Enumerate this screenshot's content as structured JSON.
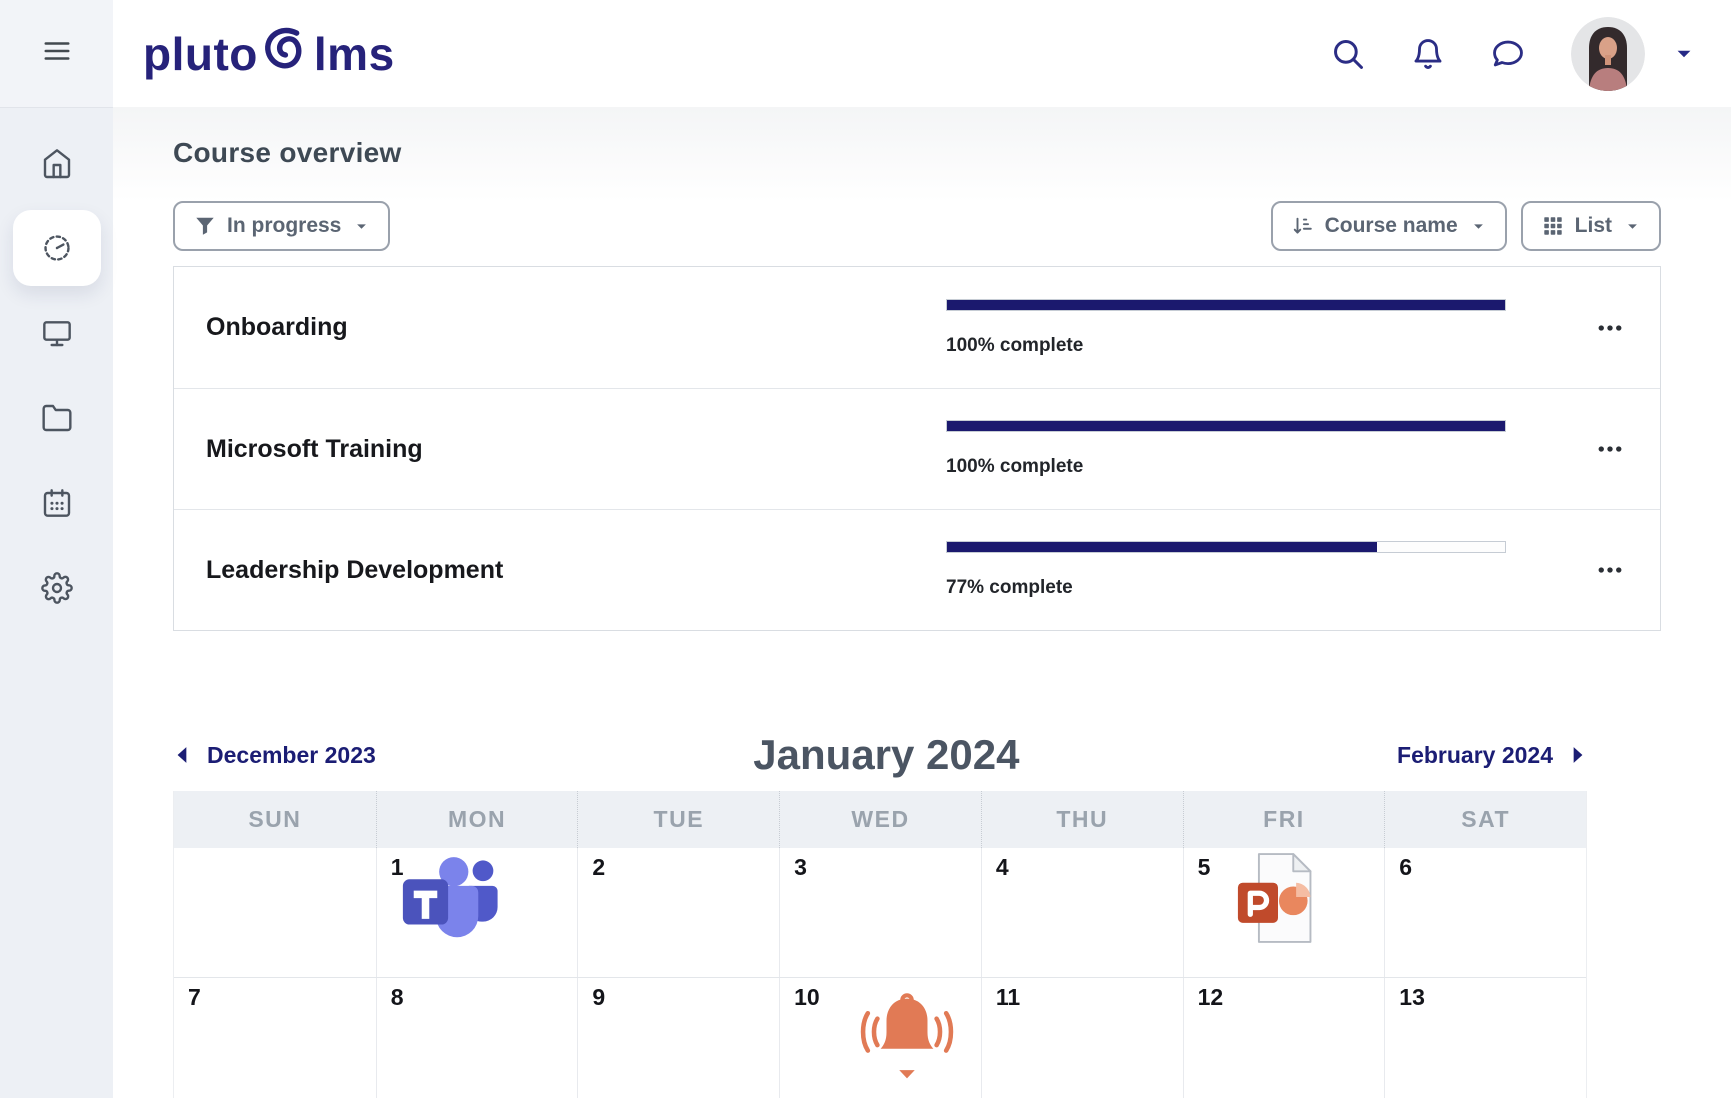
{
  "app": {
    "logo": {
      "part1": "pluto",
      "part2": "lms"
    }
  },
  "header": {
    "icons": [
      {
        "key": "search",
        "name": "search-icon"
      },
      {
        "key": "bellOutline",
        "name": "notifications-bell-icon"
      },
      {
        "key": "chat",
        "name": "messages-chat-icon"
      }
    ]
  },
  "sidebar": {
    "items": [
      {
        "id": "home",
        "icon_key": "home",
        "icon_name": "home-icon",
        "active": false
      },
      {
        "id": "dashboard",
        "icon_key": "gauge",
        "icon_name": "dashboard-gauge-icon",
        "active": true
      },
      {
        "id": "screens",
        "icon_key": "monitor",
        "icon_name": "monitor-icon",
        "active": false
      },
      {
        "id": "files",
        "icon_key": "folder",
        "icon_name": "folder-icon",
        "active": false
      },
      {
        "id": "calendar",
        "icon_key": "calendar",
        "icon_name": "calendar-icon",
        "active": false
      },
      {
        "id": "settings",
        "icon_key": "gear",
        "icon_name": "gear-icon",
        "active": false
      }
    ]
  },
  "course_overview": {
    "title": "Course overview",
    "filter_label": "In progress",
    "sort_label": "Course name",
    "view_label": "List",
    "courses": [
      {
        "name": "Onboarding",
        "progress_percent": 100,
        "progress_label": "100% complete"
      },
      {
        "name": "Microsoft Training",
        "progress_percent": 100,
        "progress_label": "100% complete"
      },
      {
        "name": "Leadership Development",
        "progress_percent": 77,
        "progress_label": "77% complete"
      }
    ]
  },
  "calendar": {
    "prev_label": "December 2023",
    "title": "January 2024",
    "next_label": "February 2024",
    "weekdays": [
      "SUN",
      "MON",
      "TUE",
      "WED",
      "THU",
      "FRI",
      "SAT"
    ],
    "weeks": [
      [
        "",
        "1",
        "2",
        "3",
        "4",
        "5",
        "6"
      ],
      [
        "7",
        "8",
        "9",
        "10",
        "11",
        "12",
        "13"
      ]
    ],
    "events": [
      {
        "day": "1",
        "icon": "teams",
        "icon_name": "ms-teams-icon"
      },
      {
        "day": "5",
        "icon": "powerpoint",
        "icon_name": "powerpoint-file-icon"
      },
      {
        "day": "10",
        "icon": "bell",
        "icon_name": "reminder-bell-icon"
      }
    ]
  },
  "colors": {
    "brand_navy": "#26227a",
    "icon_navy": "#2b2d85",
    "progress_navy": "#1b196e",
    "heading_slate": "#3e4954",
    "event_orange": "#e17a55",
    "teams_purple": "#7b83eb",
    "powerpoint_red": "#c04a2b"
  }
}
